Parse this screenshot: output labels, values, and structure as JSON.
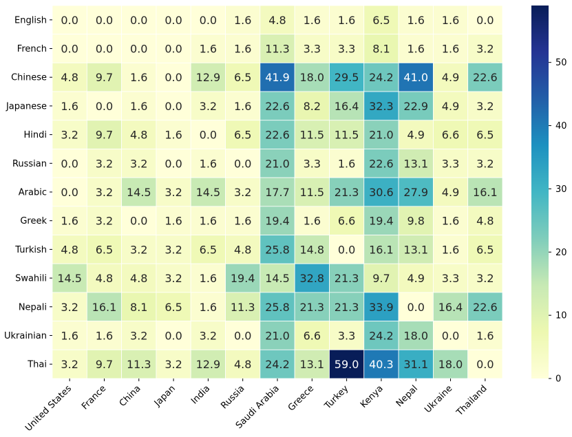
{
  "chart_data": {
    "type": "heatmap",
    "title": "",
    "xlabel": "",
    "ylabel": "",
    "rows": [
      "English",
      "French",
      "Chinese",
      "Japanese",
      "Hindi",
      "Russian",
      "Arabic",
      "Greek",
      "Turkish",
      "Swahili",
      "Nepali",
      "Ukrainian",
      "Thai"
    ],
    "columns": [
      "United States",
      "France",
      "China",
      "Japan",
      "India",
      "Russia",
      "Saudi Arabia",
      "Greece",
      "Turkey",
      "Kenya",
      "Nepal",
      "Ukraine",
      "Thailand"
    ],
    "values": [
      [
        0.0,
        0.0,
        0.0,
        0.0,
        0.0,
        1.6,
        4.8,
        1.6,
        1.6,
        6.5,
        1.6,
        1.6,
        0.0
      ],
      [
        0.0,
        0.0,
        0.0,
        0.0,
        1.6,
        1.6,
        11.3,
        3.3,
        3.3,
        8.1,
        1.6,
        1.6,
        3.2
      ],
      [
        4.8,
        9.7,
        1.6,
        0.0,
        12.9,
        6.5,
        41.9,
        18.0,
        29.5,
        24.2,
        41.0,
        4.9,
        22.6
      ],
      [
        1.6,
        0.0,
        1.6,
        0.0,
        3.2,
        1.6,
        22.6,
        8.2,
        16.4,
        32.3,
        22.9,
        4.9,
        3.2
      ],
      [
        3.2,
        9.7,
        4.8,
        1.6,
        0.0,
        6.5,
        22.6,
        11.5,
        11.5,
        21.0,
        4.9,
        6.6,
        6.5
      ],
      [
        0.0,
        3.2,
        3.2,
        0.0,
        1.6,
        0.0,
        21.0,
        3.3,
        1.6,
        22.6,
        13.1,
        3.3,
        3.2
      ],
      [
        0.0,
        3.2,
        14.5,
        3.2,
        14.5,
        3.2,
        17.7,
        11.5,
        21.3,
        30.6,
        27.9,
        4.9,
        16.1
      ],
      [
        1.6,
        3.2,
        0.0,
        1.6,
        1.6,
        1.6,
        19.4,
        1.6,
        6.6,
        19.4,
        9.8,
        1.6,
        4.8
      ],
      [
        4.8,
        6.5,
        3.2,
        3.2,
        6.5,
        4.8,
        25.8,
        14.8,
        0.0,
        16.1,
        13.1,
        1.6,
        6.5
      ],
      [
        14.5,
        4.8,
        4.8,
        3.2,
        1.6,
        19.4,
        14.5,
        32.8,
        21.3,
        9.7,
        4.9,
        3.3,
        3.2
      ],
      [
        3.2,
        16.1,
        8.1,
        6.5,
        1.6,
        11.3,
        25.8,
        21.3,
        21.3,
        33.9,
        0.0,
        16.4,
        22.6
      ],
      [
        1.6,
        1.6,
        3.2,
        0.0,
        3.2,
        0.0,
        21.0,
        6.6,
        3.3,
        24.2,
        18.0,
        0.0,
        1.6
      ],
      [
        3.2,
        9.7,
        11.3,
        3.2,
        12.9,
        4.8,
        24.2,
        13.1,
        59.0,
        40.3,
        31.1,
        18.0,
        0.0
      ]
    ],
    "value_format": "0.0",
    "vmin": 0,
    "vmax": 59.0,
    "colormap": "YlGnBu",
    "colorbar": {
      "ticks": [
        0,
        10,
        20,
        30,
        40,
        50
      ]
    },
    "cell_border_color": "#ffffff",
    "colormap_stops": [
      "#ffffd9",
      "#edf8b1",
      "#c7e9b4",
      "#7fcdbb",
      "#41b6c4",
      "#1d91c0",
      "#225ea8",
      "#253494",
      "#081d58"
    ]
  }
}
